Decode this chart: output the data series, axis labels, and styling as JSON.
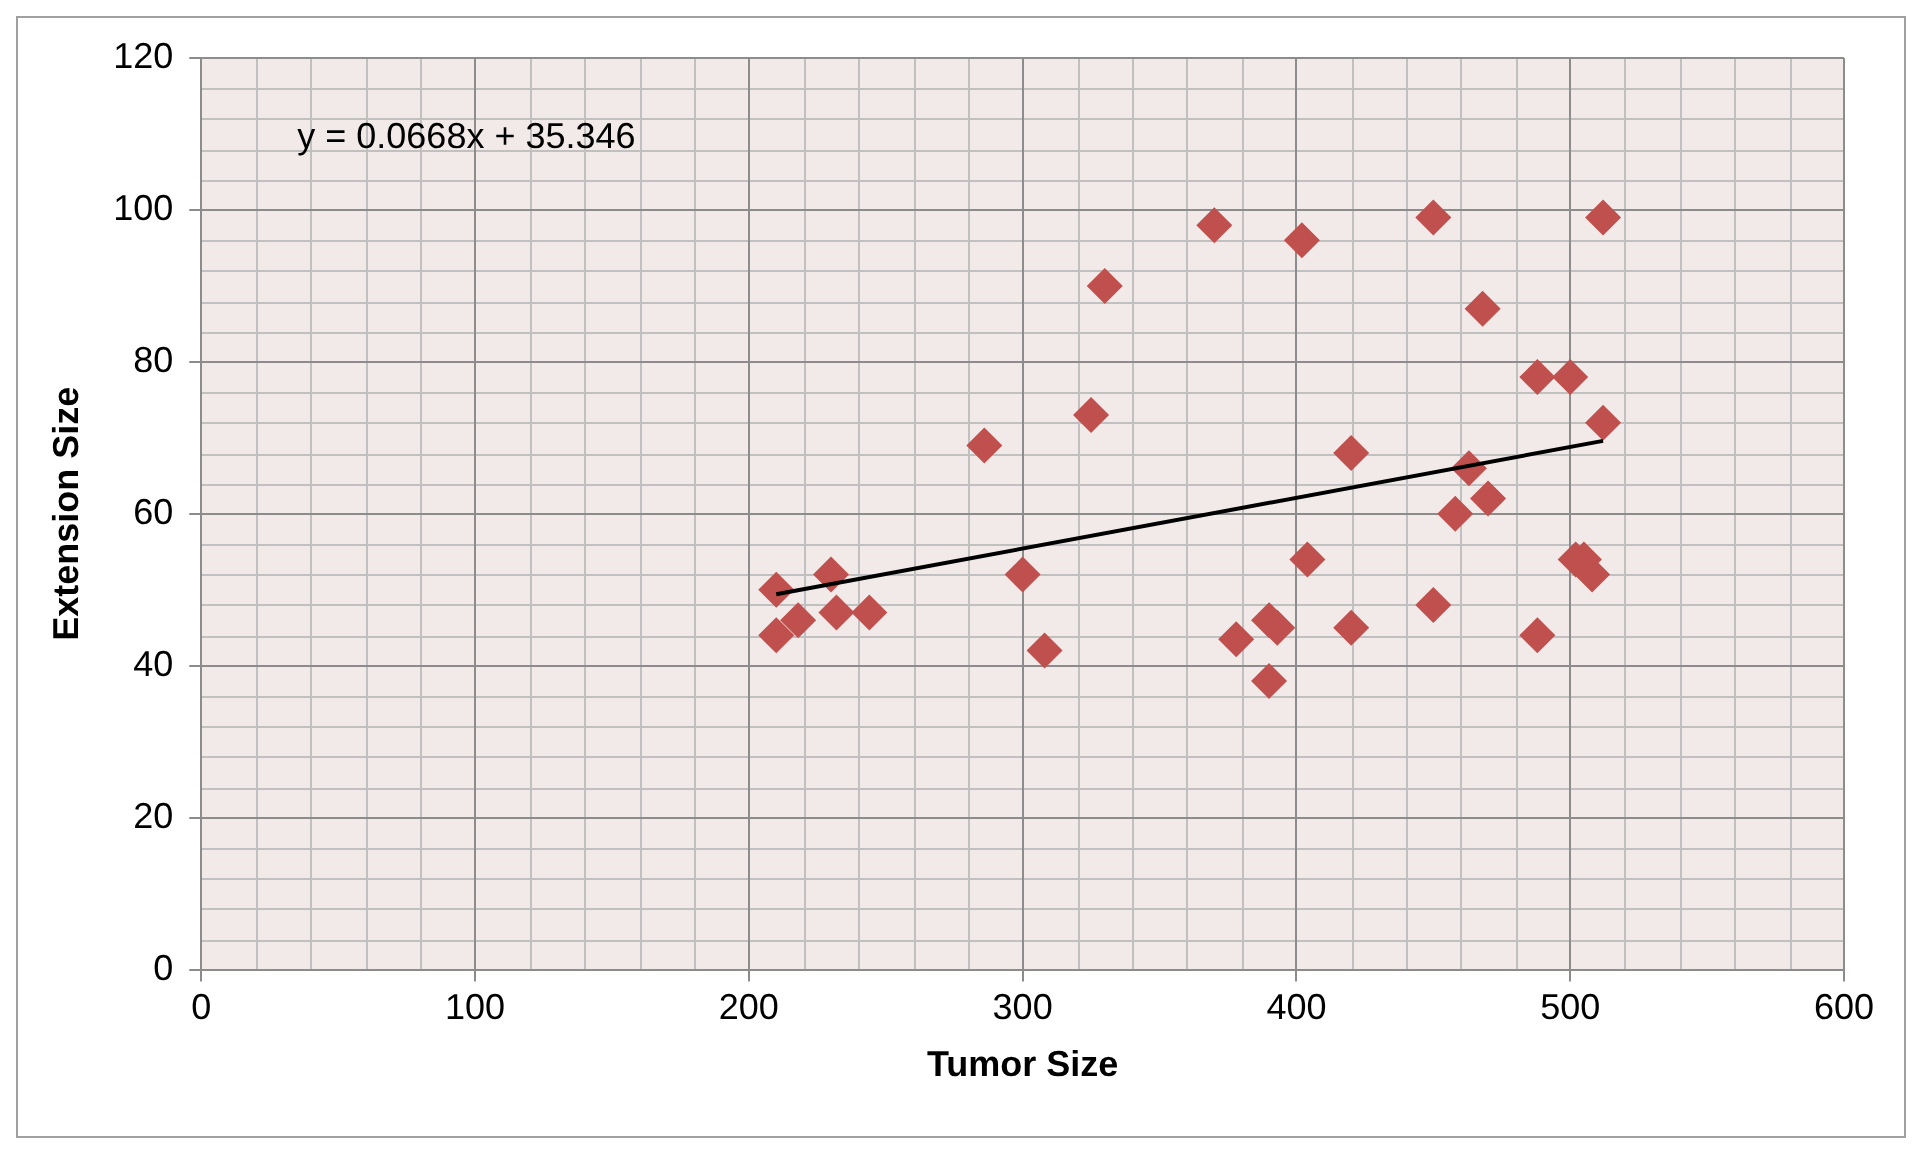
{
  "chart_data": {
    "type": "scatter",
    "xlabel": "Tumor Size",
    "ylabel": "Extension Size",
    "xlim": [
      0,
      600
    ],
    "xticks": [
      0,
      100,
      200,
      300,
      400,
      500,
      600
    ],
    "ylim": [
      0,
      120
    ],
    "yticks": [
      0,
      20,
      40,
      60,
      80,
      100,
      120
    ],
    "grid": true,
    "legend": false,
    "marker": "diamond",
    "annotations": [
      "y = 0.0668x + 35.346"
    ],
    "series": [
      {
        "color": "#c0504d",
        "x": [
          210,
          210,
          218,
          230,
          232,
          244,
          286,
          300,
          308,
          325,
          330,
          370,
          378,
          390,
          390,
          393,
          402,
          404,
          420,
          420,
          450,
          450,
          458,
          463,
          468,
          470,
          488,
          488,
          500,
          502,
          505,
          508,
          512,
          512
        ],
        "values": [
          44,
          50,
          46,
          52,
          47,
          47,
          69,
          52,
          42,
          73,
          90,
          98,
          43.5,
          38,
          46,
          45,
          96,
          54,
          68,
          45,
          99,
          48,
          60,
          66,
          87,
          62,
          78,
          44,
          78,
          54,
          54,
          52,
          72,
          99
        ]
      },
      {
        "type": "line",
        "color": "#000000",
        "marker": "none",
        "line_style": "solid",
        "x": [
          210,
          512
        ],
        "values": [
          49.4,
          69.6
        ]
      }
    ]
  }
}
